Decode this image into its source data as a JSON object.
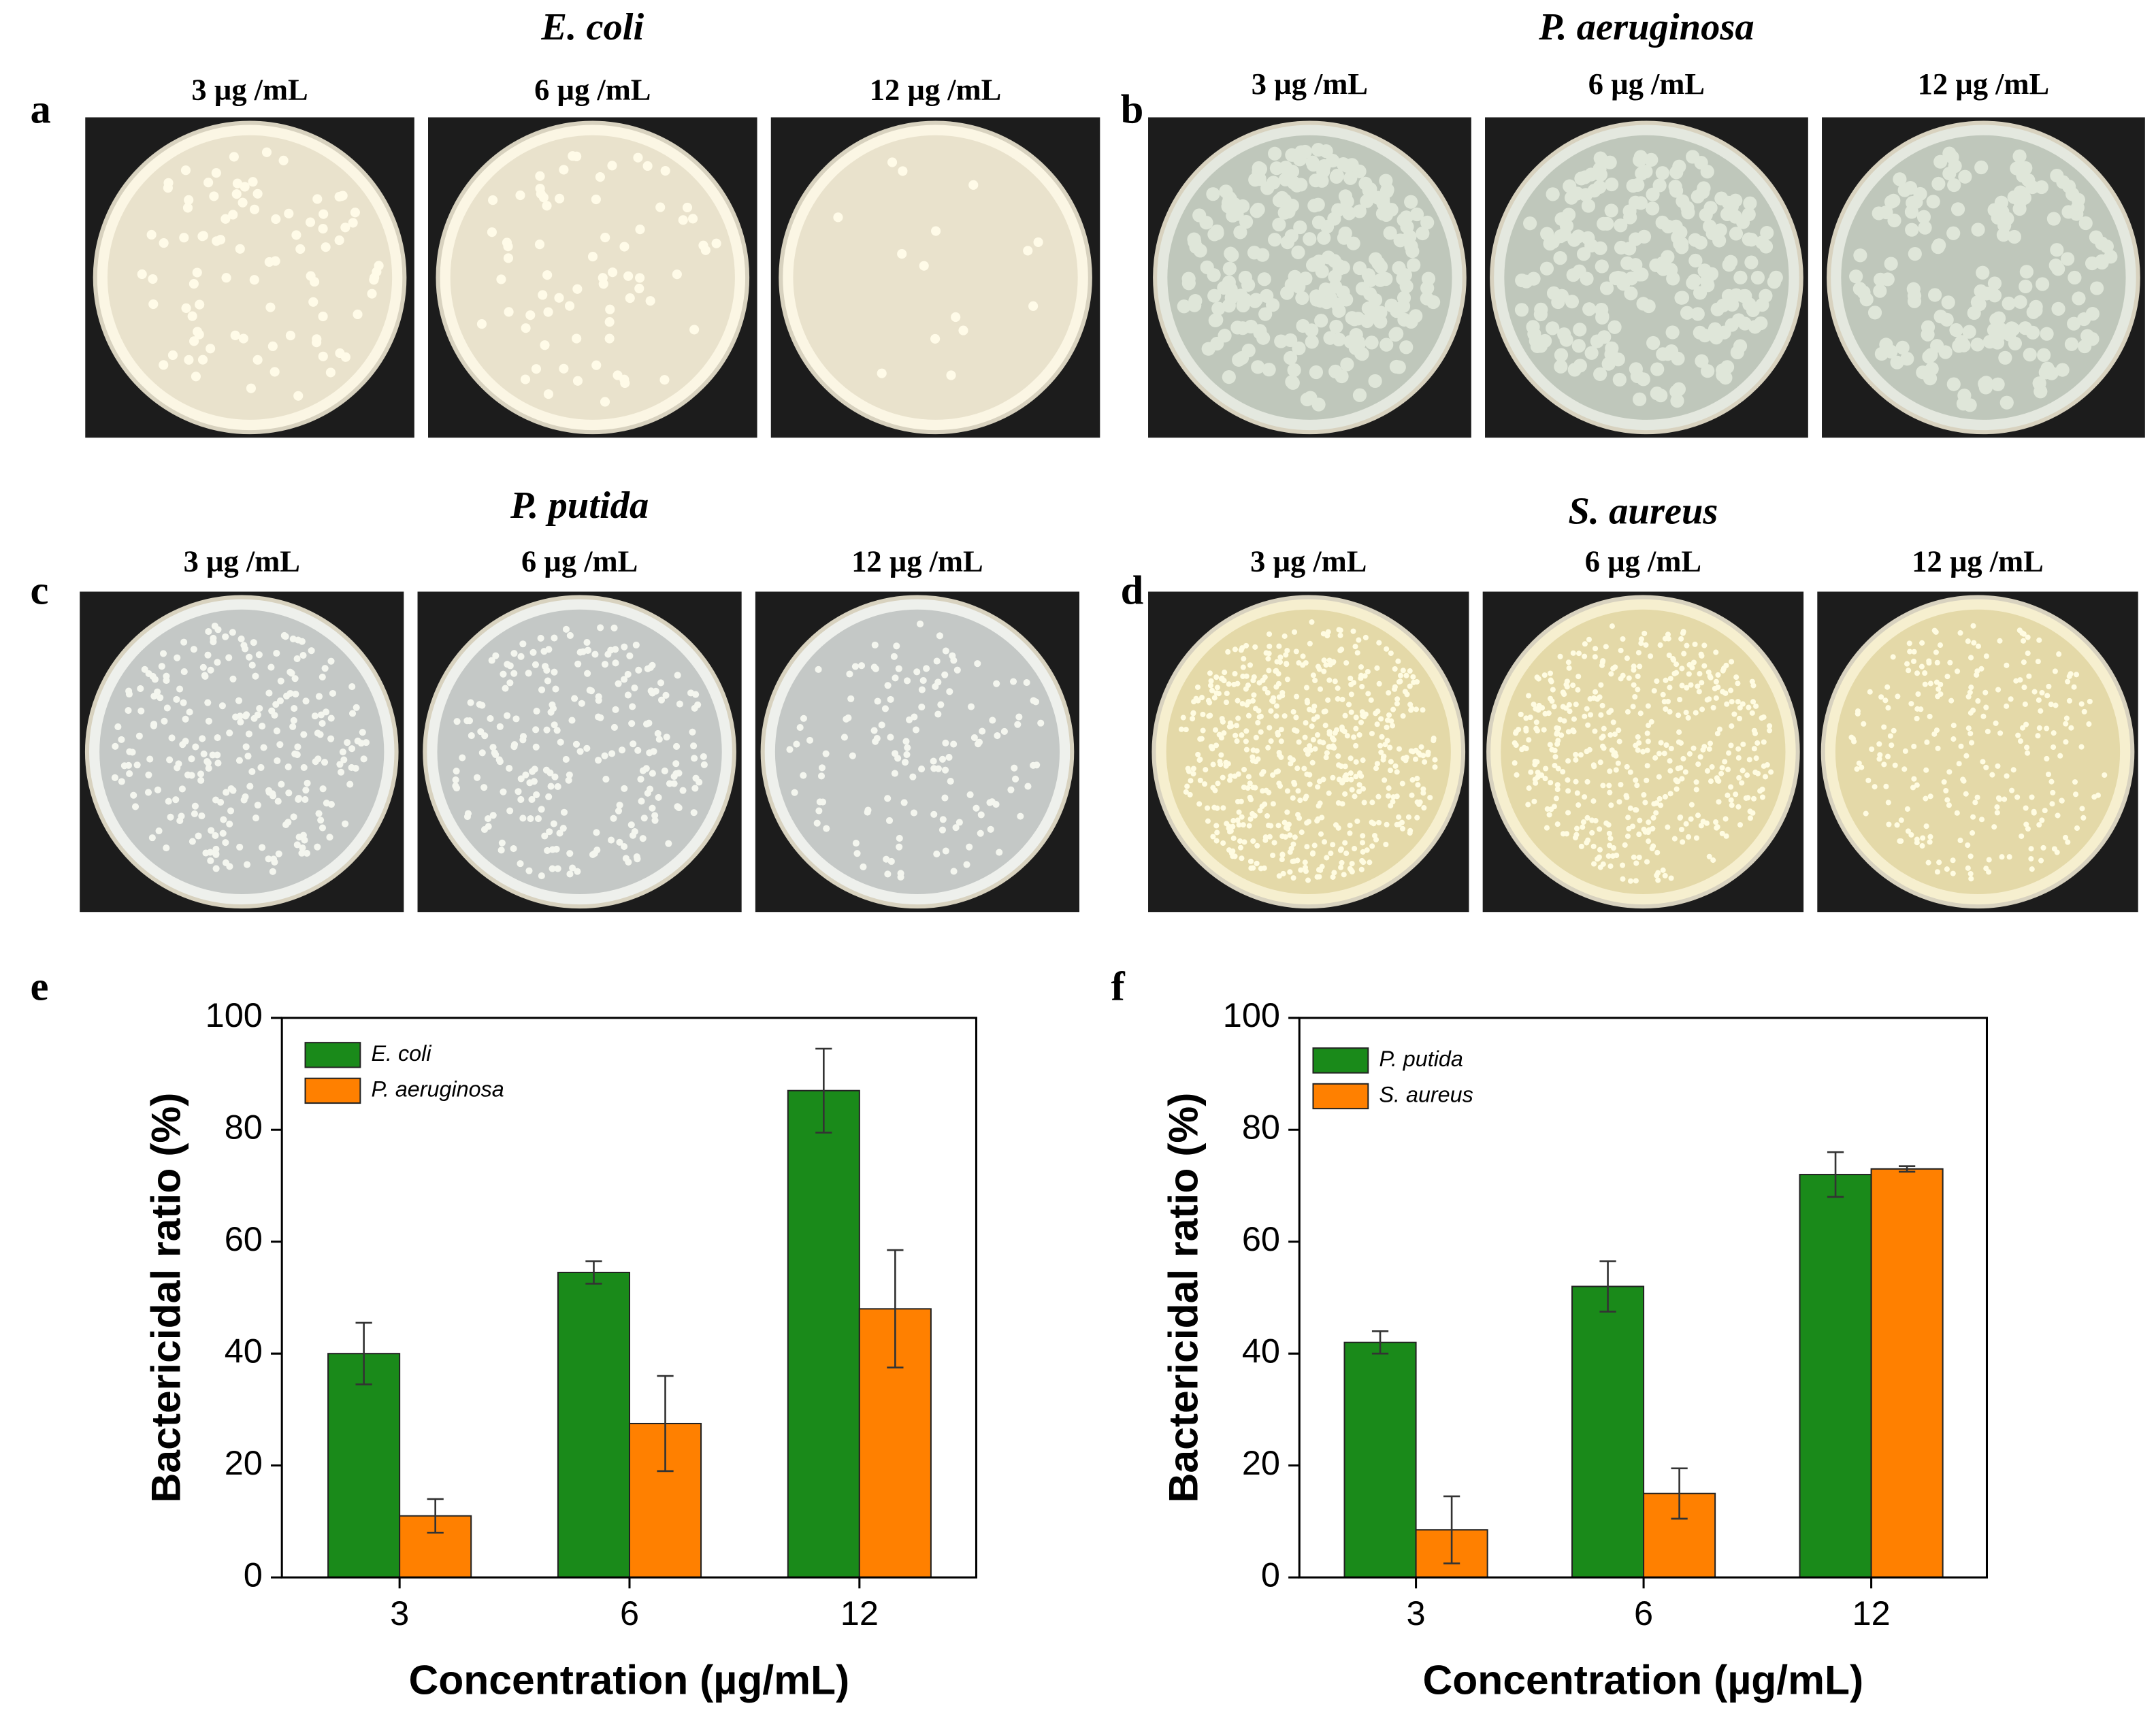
{
  "photo_panels": [
    {
      "letter": "a",
      "title": "E. coli",
      "concentrations": [
        "3 µg /mL",
        "6 µg /mL",
        "12 µg /mL"
      ]
    },
    {
      "letter": "b",
      "title": "P. aeruginosa",
      "concentrations": [
        "3 µg /mL",
        "6 µg /mL",
        "12 µg /mL"
      ]
    },
    {
      "letter": "c",
      "title": "P. putida",
      "concentrations": [
        "3 µg /mL",
        "6 µg /mL",
        "12 µg /mL"
      ]
    },
    {
      "letter": "d",
      "title": "S. aureus",
      "concentrations": [
        "3 µg /mL",
        "6 µg /mL",
        "12 µg /mL"
      ]
    }
  ],
  "chart_data": [
    {
      "type": "bar",
      "label": "e",
      "x_label": "Concentration (µg/mL)",
      "y_label": "Bactericidal ratio (%)",
      "categories": [
        "3",
        "6",
        "12"
      ],
      "series": [
        {
          "name": "E. coli",
          "color": "#1a8a1a",
          "values": [
            40,
            54.5,
            87
          ],
          "errors": [
            5.5,
            2,
            7.5
          ]
        },
        {
          "name": "P. aeruginosa",
          "color": "#ff8000",
          "values": [
            11,
            27.5,
            48
          ],
          "errors": [
            3,
            8.5,
            10.5
          ]
        }
      ],
      "ylim": [
        0,
        100
      ],
      "yticks": [
        0,
        20,
        40,
        60,
        80,
        100
      ],
      "legend": "upper-left"
    },
    {
      "type": "bar",
      "label": "f",
      "x_label": "Concentration (µg/mL)",
      "y_label": "Bactericidal ratio (%)",
      "categories": [
        "3",
        "6",
        "12"
      ],
      "series": [
        {
          "name": "P. putida",
          "color": "#1a8a1a",
          "values": [
            42,
            52,
            72
          ],
          "errors": [
            2,
            4.5,
            4
          ]
        },
        {
          "name": "S. aureus",
          "color": "#ff8000",
          "values": [
            8.5,
            15,
            73
          ],
          "errors": [
            6,
            4.5,
            0.5
          ]
        }
      ],
      "ylim": [
        0,
        100
      ],
      "yticks": [
        0,
        20,
        40,
        60,
        80,
        100
      ],
      "legend": "upper-left"
    }
  ]
}
